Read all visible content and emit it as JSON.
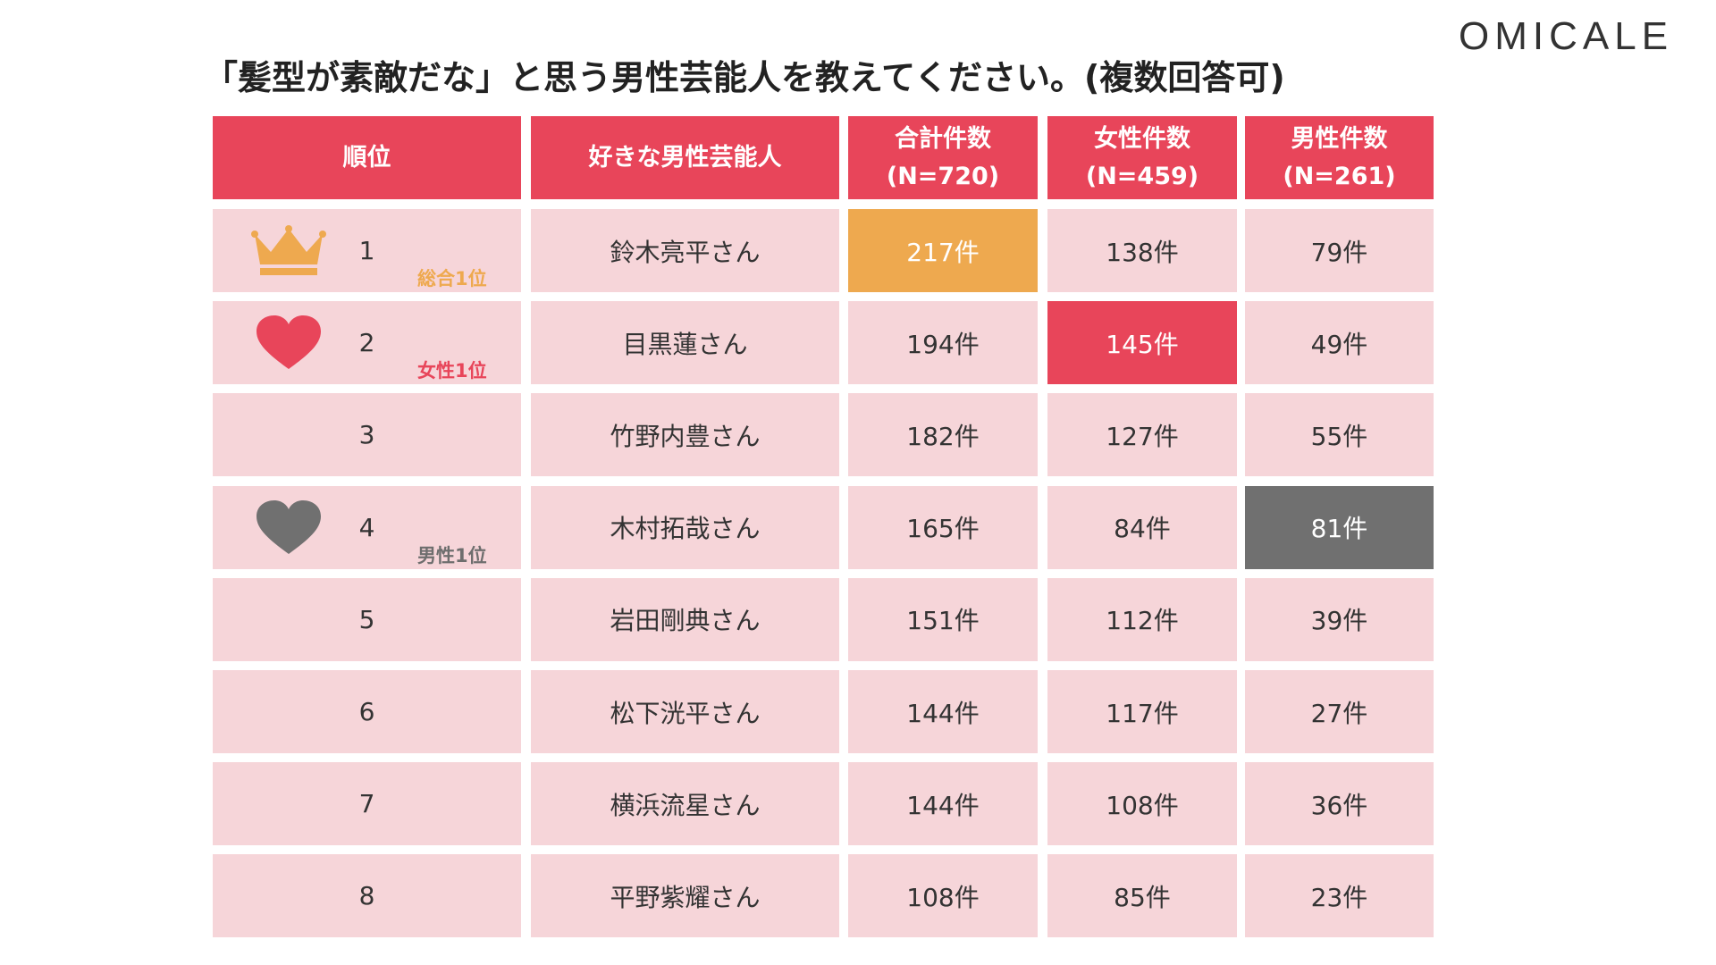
{
  "header": {
    "title": "「髪型が素敵だな」と思う男性芸能人を教えてください。(複数回答可)",
    "logo": "OMICALE"
  },
  "table": {
    "columns": [
      [
        "順位"
      ],
      [
        "好きな男性芸能人"
      ],
      [
        "合計件数",
        "(N=720)"
      ],
      [
        "女性件数",
        "(N=459)"
      ],
      [
        "男性件数",
        "(N=261)"
      ]
    ],
    "header_color": "#E8455A",
    "row_color": "#F6D5D9",
    "rows": [
      {
        "cells": [
          "1",
          "鈴木亮平さん",
          "217件",
          "138件",
          "79件"
        ],
        "icon": "crown",
        "badge": {
          "text": "総合1位",
          "color": "#EEA94F"
        },
        "highlight": {
          "cell": 2,
          "color": "#EEA94F"
        }
      },
      {
        "cells": [
          "2",
          "目黒蓮さん",
          "194件",
          "145件",
          "49件"
        ],
        "icon": "heart",
        "badge": {
          "text": "女性1位",
          "color": "#E8455A"
        },
        "highlight": {
          "cell": 3,
          "color": "#E8455A"
        }
      },
      {
        "cells": [
          "3",
          "竹野内豊さん",
          "182件",
          "127件",
          "55件"
        ]
      },
      {
        "cells": [
          "4",
          "木村拓哉さん",
          "165件",
          "84件",
          "81件"
        ],
        "icon": "heart",
        "badge": {
          "text": "男性1位",
          "color": "#6E6E6E"
        },
        "highlight": {
          "cell": 4,
          "color": "#707070"
        }
      },
      {
        "cells": [
          "5",
          "岩田剛典さん",
          "151件",
          "112件",
          "39件"
        ]
      },
      {
        "cells": [
          "6",
          "松下洸平さん",
          "144件",
          "117件",
          "27件"
        ]
      },
      {
        "cells": [
          "7",
          "横浜流星さん",
          "144件",
          "108件",
          "36件"
        ]
      },
      {
        "cells": [
          "8",
          "平野紫耀さん",
          "108件",
          "85件",
          "23件"
        ]
      }
    ]
  }
}
